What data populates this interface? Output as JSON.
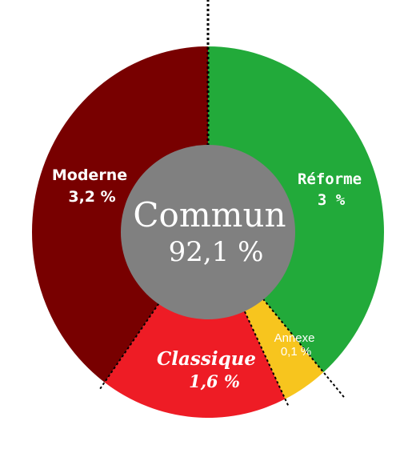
{
  "chart_data": {
    "type": "pie",
    "center": {
      "label": "Commun",
      "value_text": "92,1 %",
      "value": 92.1,
      "color": "#808080"
    },
    "slices": [
      {
        "label": "Réforme",
        "value_text": "3 %",
        "value": 3.0,
        "color": "#22aa3a"
      },
      {
        "label": "Annexe",
        "value_text": "0,1 %",
        "value": 0.1,
        "color": "#f7c51e"
      },
      {
        "label": "Classique",
        "value_text": "1,6 %",
        "value": 1.6,
        "color": "#ee1c25"
      },
      {
        "label": "Moderne",
        "value_text": "3,2 %",
        "value": 3.2,
        "color": "#780000"
      }
    ],
    "legend": "none",
    "grid": false
  }
}
